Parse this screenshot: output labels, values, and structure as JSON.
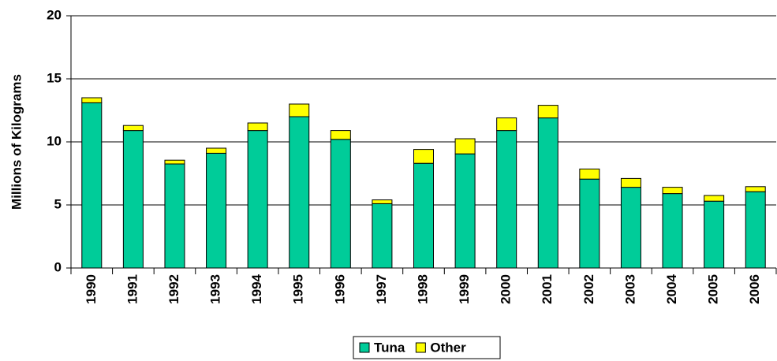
{
  "chart_data": {
    "type": "stacked_bar",
    "y_label": "Millions of Kilograms",
    "categories": [
      "1990",
      "1991",
      "1992",
      "1993",
      "1994",
      "1995",
      "1996",
      "1997",
      "1998",
      "1999",
      "2000",
      "2001",
      "2002",
      "2003",
      "2004",
      "2005",
      "2006"
    ],
    "series": [
      {
        "name": "Tuna",
        "color": "#00cc99",
        "values": [
          13.1,
          10.9,
          8.25,
          9.1,
          10.9,
          12.0,
          10.2,
          5.1,
          8.3,
          9.05,
          10.9,
          11.9,
          7.05,
          6.4,
          5.9,
          5.3,
          6.05
        ]
      },
      {
        "name": "Other",
        "color": "#ffff00",
        "values": [
          0.4,
          0.4,
          0.3,
          0.4,
          0.6,
          1.0,
          0.7,
          0.3,
          1.1,
          1.2,
          1.0,
          1.0,
          0.8,
          0.7,
          0.5,
          0.45,
          0.4
        ]
      }
    ],
    "ylim": [
      0,
      20
    ],
    "yticks": [
      0,
      5,
      10,
      15,
      20
    ],
    "grid": true,
    "legend": "bottom"
  }
}
